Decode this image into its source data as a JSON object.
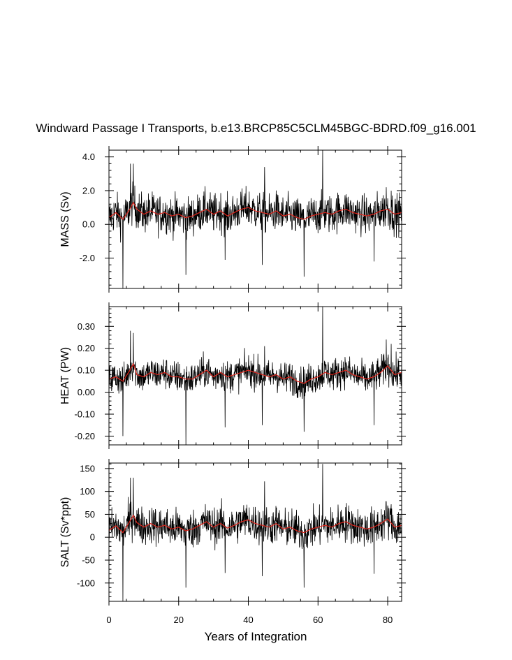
{
  "title": "Windward Passage I Transports, b.e13.BRCP85C5CLM45BGC-BDRD.f09_g16.001",
  "xlabel": "Years of Integration",
  "colors": {
    "raw": "#000000",
    "smooth": "#e0241b"
  },
  "chart_data": [
    {
      "type": "line",
      "ylabel": "MASS (Sv)",
      "xlim": [
        0,
        84
      ],
      "ylim": [
        -3.8,
        4.4
      ],
      "xticks": [
        0,
        20,
        40,
        60,
        80
      ],
      "yticks": [
        -2.0,
        0.0,
        2.0,
        4.0
      ],
      "ytick_labels": [
        "-2.0",
        "0.0",
        "2.0",
        "4.0"
      ],
      "series": [
        {
          "style": "raw-monthly",
          "x": [
            0,
            84
          ],
          "baseline": 0.7,
          "amplitude": 1.1,
          "extremes": [
            [
              4.0,
              -3.8
            ],
            [
              6.2,
              3.6
            ],
            [
              7.0,
              3.6
            ],
            [
              22.1,
              -3.0
            ],
            [
              61.3,
              4.4
            ],
            [
              56.0,
              -3.1
            ],
            [
              44.7,
              3.4
            ],
            [
              44.0,
              -2.4
            ],
            [
              33.3,
              -2.1
            ],
            [
              76.1,
              -2.2
            ],
            [
              79.6,
              2.2
            ],
            [
              81.0,
              2.0
            ]
          ]
        },
        {
          "style": "annual-mean",
          "x": [
            0,
            2,
            4,
            6,
            7,
            8,
            10,
            12,
            14,
            16,
            18,
            20,
            22,
            24,
            26,
            28,
            30,
            32,
            34,
            36,
            38,
            40,
            42,
            44,
            46,
            48,
            50,
            52,
            54,
            56,
            58,
            60,
            62,
            64,
            66,
            68,
            70,
            72,
            74,
            76,
            78,
            80,
            82,
            84
          ],
          "y": [
            0.4,
            0.7,
            0.3,
            0.9,
            1.3,
            0.9,
            0.6,
            0.8,
            0.6,
            0.7,
            0.5,
            0.6,
            0.4,
            0.5,
            0.7,
            0.9,
            0.6,
            0.8,
            0.5,
            0.7,
            0.9,
            1.0,
            0.8,
            0.7,
            0.6,
            0.8,
            0.5,
            0.6,
            0.4,
            0.3,
            0.5,
            0.6,
            0.7,
            0.6,
            0.8,
            0.9,
            0.7,
            0.6,
            0.5,
            0.6,
            0.8,
            0.9,
            0.6,
            0.7
          ]
        }
      ]
    },
    {
      "type": "line",
      "ylabel": "HEAT (PW)",
      "xlim": [
        0,
        84
      ],
      "ylim": [
        -0.24,
        0.39
      ],
      "xticks": [
        0,
        20,
        40,
        60,
        80
      ],
      "yticks": [
        -0.2,
        -0.1,
        0.0,
        0.1,
        0.2,
        0.3
      ],
      "ytick_labels": [
        "-0.20",
        "-0.10",
        "0.00",
        "0.10",
        "0.20",
        "0.30"
      ],
      "series": [
        {
          "style": "raw-monthly",
          "x": [
            0,
            84
          ],
          "baseline": 0.08,
          "amplitude": 0.07,
          "extremes": [
            [
              4.0,
              -0.2
            ],
            [
              6.2,
              0.28
            ],
            [
              7.0,
              0.27
            ],
            [
              22.1,
              -0.24
            ],
            [
              61.3,
              0.39
            ],
            [
              56.0,
              -0.18
            ],
            [
              44.7,
              0.21
            ],
            [
              44.0,
              -0.15
            ],
            [
              33.3,
              -0.16
            ],
            [
              76.1,
              -0.15
            ],
            [
              79.6,
              0.24
            ],
            [
              81.0,
              0.22
            ]
          ]
        },
        {
          "style": "annual-mean",
          "x": [
            0,
            2,
            4,
            6,
            7,
            8,
            10,
            12,
            14,
            16,
            18,
            20,
            22,
            24,
            26,
            28,
            30,
            32,
            34,
            36,
            38,
            40,
            42,
            44,
            46,
            48,
            50,
            52,
            54,
            56,
            58,
            60,
            62,
            64,
            66,
            68,
            70,
            72,
            74,
            76,
            78,
            80,
            82,
            84
          ],
          "y": [
            0.06,
            0.07,
            0.05,
            0.1,
            0.13,
            0.08,
            0.07,
            0.09,
            0.08,
            0.09,
            0.07,
            0.07,
            0.06,
            0.06,
            0.08,
            0.1,
            0.07,
            0.09,
            0.07,
            0.08,
            0.09,
            0.1,
            0.09,
            0.08,
            0.07,
            0.08,
            0.06,
            0.07,
            0.05,
            0.04,
            0.06,
            0.07,
            0.09,
            0.08,
            0.09,
            0.1,
            0.08,
            0.07,
            0.06,
            0.07,
            0.09,
            0.12,
            0.08,
            0.09
          ]
        }
      ]
    },
    {
      "type": "line",
      "ylabel": "SALT (Sv*ppt)",
      "xlim": [
        0,
        84
      ],
      "ylim": [
        -140,
        162
      ],
      "xticks": [
        0,
        20,
        40,
        60,
        80
      ],
      "xtick_labels": [
        "0",
        "20",
        "40",
        "60",
        "80"
      ],
      "yticks": [
        -100,
        -50,
        0,
        50,
        100,
        150
      ],
      "ytick_labels": [
        "-100",
        "-50",
        "0",
        "50",
        "100",
        "150"
      ],
      "series": [
        {
          "style": "raw-monthly",
          "x": [
            0,
            84
          ],
          "baseline": 25,
          "amplitude": 40,
          "extremes": [
            [
              4.0,
              -140
            ],
            [
              6.2,
              130
            ],
            [
              7.0,
              130
            ],
            [
              22.1,
              -110
            ],
            [
              61.3,
              160
            ],
            [
              56.0,
              -110
            ],
            [
              44.7,
              122
            ],
            [
              44.0,
              -85
            ],
            [
              33.3,
              -78
            ],
            [
              76.1,
              -80
            ],
            [
              79.6,
              78
            ],
            [
              81.0,
              72
            ]
          ]
        },
        {
          "style": "annual-mean",
          "x": [
            0,
            2,
            4,
            6,
            7,
            8,
            10,
            12,
            14,
            16,
            18,
            20,
            22,
            24,
            26,
            28,
            30,
            32,
            34,
            36,
            38,
            40,
            42,
            44,
            46,
            48,
            50,
            52,
            54,
            56,
            58,
            60,
            62,
            64,
            66,
            68,
            70,
            72,
            74,
            76,
            78,
            80,
            82,
            84
          ],
          "y": [
            15,
            25,
            10,
            35,
            48,
            32,
            22,
            30,
            22,
            26,
            18,
            22,
            14,
            18,
            26,
            34,
            22,
            30,
            20,
            26,
            34,
            38,
            30,
            26,
            22,
            30,
            18,
            22,
            14,
            10,
            18,
            22,
            26,
            22,
            30,
            34,
            26,
            22,
            18,
            22,
            30,
            40,
            22,
            26
          ]
        }
      ]
    }
  ]
}
